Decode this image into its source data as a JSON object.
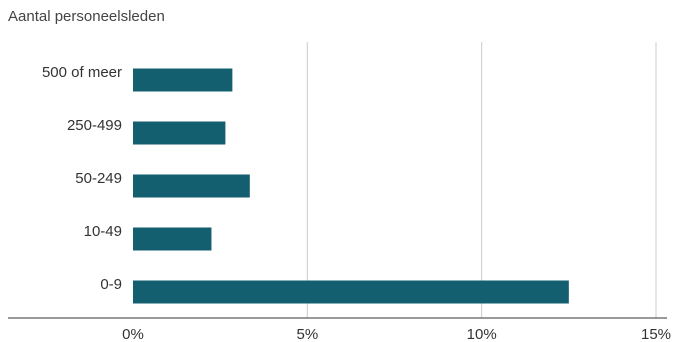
{
  "chart_data": {
    "type": "bar",
    "orientation": "horizontal",
    "title": "",
    "ylabel": "Aantal personeelsleden",
    "xlabel": "",
    "categories": [
      "500 of meer",
      "250-499",
      "50-249",
      "10-49",
      "0-9"
    ],
    "values": [
      2.85,
      2.65,
      3.35,
      2.25,
      12.5
    ],
    "xlim": [
      0,
      15
    ],
    "xticks": [
      0,
      5,
      10,
      15
    ],
    "xtick_labels": [
      "0%",
      "5%",
      "10%",
      "15%"
    ],
    "grid": "vertical",
    "bar_color": "#135e6f",
    "grid_color": "#cccccc"
  }
}
